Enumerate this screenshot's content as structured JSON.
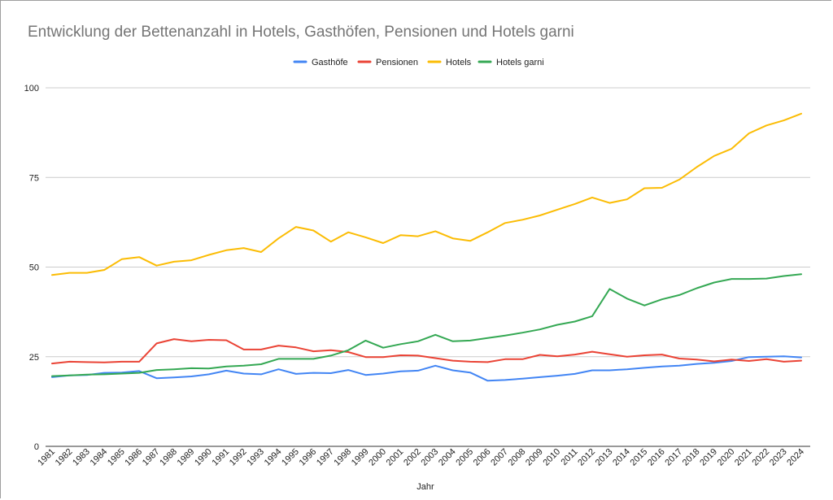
{
  "chart_data": {
    "type": "line",
    "title": "Entwicklung der Bettenanzahl in Hotels, Gasthöfen, Pensionen und Hotels garni",
    "xlabel": "Jahr",
    "ylabel": "",
    "ylim": [
      0,
      100
    ],
    "yticks": [
      0,
      25,
      50,
      75,
      100
    ],
    "grid": true,
    "legend_position": "top",
    "x": [
      "1981",
      "1982",
      "1983",
      "1984",
      "1985",
      "1986",
      "1987",
      "1988",
      "1989",
      "1990",
      "1991",
      "1992",
      "1993",
      "1994",
      "1995",
      "1996",
      "1997",
      "1998",
      "1999",
      "2000",
      "2001",
      "2002",
      "2003",
      "2004",
      "2005",
      "2006",
      "2007",
      "2008",
      "2009",
      "2010",
      "2011",
      "2012",
      "2013",
      "2014",
      "2015",
      "2016",
      "2017",
      "2018",
      "2019",
      "2020",
      "2021",
      "2022",
      "2023",
      "2024"
    ],
    "series": [
      {
        "name": "Gasthöfe",
        "color": "#4285f4",
        "values": [
          19.3,
          19.8,
          19.9,
          20.5,
          20.6,
          21.0,
          19.0,
          19.2,
          19.5,
          20.1,
          21.1,
          20.3,
          20.1,
          21.5,
          20.2,
          20.5,
          20.4,
          21.3,
          19.9,
          20.3,
          20.9,
          21.1,
          22.5,
          21.2,
          20.6,
          18.3,
          18.5,
          18.9,
          19.3,
          19.7,
          20.2,
          21.2,
          21.2,
          21.5,
          21.9,
          22.3,
          22.5,
          23.0,
          23.3,
          23.8,
          24.9,
          25.0,
          25.1,
          24.8
        ]
      },
      {
        "name": "Pensionen",
        "color": "#ea4335",
        "values": [
          23.1,
          23.6,
          23.5,
          23.4,
          23.6,
          23.6,
          28.7,
          29.9,
          29.3,
          29.7,
          29.6,
          27.0,
          27.0,
          28.1,
          27.6,
          26.5,
          26.8,
          26.3,
          24.9,
          24.9,
          25.4,
          25.3,
          24.6,
          23.9,
          23.6,
          23.5,
          24.3,
          24.3,
          25.5,
          25.1,
          25.6,
          26.4,
          25.7,
          25.0,
          25.4,
          25.6,
          24.5,
          24.2,
          23.7,
          24.2,
          23.8,
          24.3,
          23.6,
          23.9
        ]
      },
      {
        "name": "Hotels",
        "color": "#fbbc04",
        "values": [
          47.8,
          48.4,
          48.4,
          49.2,
          52.2,
          52.8,
          50.4,
          51.5,
          51.9,
          53.4,
          54.7,
          55.3,
          54.2,
          58.0,
          61.2,
          60.2,
          57.1,
          59.7,
          58.3,
          56.7,
          58.9,
          58.6,
          60.0,
          58.0,
          57.3,
          59.7,
          62.3,
          63.2,
          64.4,
          66.0,
          67.6,
          69.4,
          67.9,
          68.9,
          72.0,
          72.1,
          74.4,
          77.9,
          81.0,
          83.0,
          87.3,
          89.5,
          90.9,
          92.8
        ]
      },
      {
        "name": "Hotels garni",
        "color": "#34a853",
        "values": [
          19.6,
          19.8,
          20.0,
          20.1,
          20.3,
          20.5,
          21.3,
          21.5,
          21.8,
          21.7,
          22.3,
          22.5,
          22.9,
          24.4,
          24.4,
          24.4,
          25.3,
          26.8,
          29.5,
          27.5,
          28.5,
          29.3,
          31.1,
          29.3,
          29.5,
          30.2,
          30.9,
          31.7,
          32.6,
          33.9,
          34.8,
          36.3,
          43.9,
          41.2,
          39.3,
          41.0,
          42.2,
          44.1,
          45.7,
          46.7,
          46.7,
          46.8,
          47.5,
          48.0
        ]
      }
    ]
  }
}
